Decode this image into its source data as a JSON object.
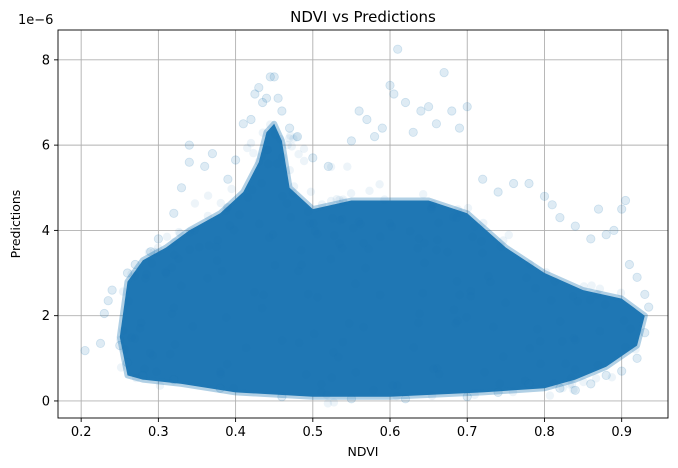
{
  "chart_data": {
    "type": "scatter",
    "title": "NDVI vs Predictions",
    "xlabel": "NDVI",
    "ylabel": "Predictions",
    "y_offset_label": "1e−6",
    "xlim": [
      0.17,
      0.96
    ],
    "ylim": [
      -0.4,
      8.7
    ],
    "x_ticks": [
      0.2,
      0.3,
      0.4,
      0.5,
      0.6,
      0.7,
      0.8,
      0.9
    ],
    "x_tick_labels": [
      "0.2",
      "0.3",
      "0.4",
      "0.5",
      "0.6",
      "0.7",
      "0.8",
      "0.9"
    ],
    "y_ticks": [
      0,
      2,
      4,
      6,
      8
    ],
    "y_tick_labels": [
      "0",
      "2",
      "4",
      "6",
      "8"
    ],
    "grid": true,
    "marker_color": "#1f77b4",
    "marker_alpha": 0.12,
    "series": [
      {
        "name": "",
        "density_outline": [
          [
            0.26,
            0.6
          ],
          [
            0.25,
            1.5
          ],
          [
            0.26,
            2.8
          ],
          [
            0.28,
            3.3
          ],
          [
            0.31,
            3.6
          ],
          [
            0.34,
            4.0
          ],
          [
            0.38,
            4.4
          ],
          [
            0.41,
            4.9
          ],
          [
            0.43,
            5.6
          ],
          [
            0.44,
            6.3
          ],
          [
            0.45,
            6.5
          ],
          [
            0.46,
            6.1
          ],
          [
            0.47,
            5.0
          ],
          [
            0.5,
            4.5
          ],
          [
            0.55,
            4.7
          ],
          [
            0.6,
            4.7
          ],
          [
            0.65,
            4.7
          ],
          [
            0.7,
            4.4
          ],
          [
            0.75,
            3.6
          ],
          [
            0.8,
            3.0
          ],
          [
            0.85,
            2.6
          ],
          [
            0.9,
            2.4
          ],
          [
            0.93,
            2.0
          ],
          [
            0.92,
            1.3
          ],
          [
            0.88,
            0.8
          ],
          [
            0.84,
            0.5
          ],
          [
            0.8,
            0.3
          ],
          [
            0.72,
            0.2
          ],
          [
            0.6,
            0.1
          ],
          [
            0.5,
            0.1
          ],
          [
            0.4,
            0.2
          ],
          [
            0.33,
            0.4
          ],
          [
            0.28,
            0.5
          ]
        ],
        "points": [
          [
            0.205,
            1.18
          ],
          [
            0.225,
            1.35
          ],
          [
            0.23,
            2.05
          ],
          [
            0.235,
            2.35
          ],
          [
            0.24,
            2.6
          ],
          [
            0.26,
            3.0
          ],
          [
            0.27,
            3.2
          ],
          [
            0.29,
            3.5
          ],
          [
            0.3,
            3.8
          ],
          [
            0.32,
            4.4
          ],
          [
            0.33,
            5.0
          ],
          [
            0.34,
            5.6
          ],
          [
            0.34,
            6.0
          ],
          [
            0.36,
            5.5
          ],
          [
            0.37,
            5.8
          ],
          [
            0.39,
            5.2
          ],
          [
            0.4,
            5.65
          ],
          [
            0.41,
            6.5
          ],
          [
            0.42,
            6.6
          ],
          [
            0.425,
            7.2
          ],
          [
            0.43,
            7.35
          ],
          [
            0.435,
            7.0
          ],
          [
            0.44,
            7.1
          ],
          [
            0.445,
            7.6
          ],
          [
            0.45,
            7.6
          ],
          [
            0.455,
            7.1
          ],
          [
            0.46,
            6.8
          ],
          [
            0.47,
            6.4
          ],
          [
            0.48,
            6.2
          ],
          [
            0.5,
            5.7
          ],
          [
            0.52,
            5.5
          ],
          [
            0.55,
            6.1
          ],
          [
            0.56,
            6.8
          ],
          [
            0.57,
            6.6
          ],
          [
            0.58,
            6.2
          ],
          [
            0.59,
            6.4
          ],
          [
            0.6,
            7.4
          ],
          [
            0.605,
            7.2
          ],
          [
            0.61,
            8.25
          ],
          [
            0.62,
            7.0
          ],
          [
            0.63,
            6.3
          ],
          [
            0.64,
            6.8
          ],
          [
            0.65,
            6.9
          ],
          [
            0.66,
            6.5
          ],
          [
            0.67,
            7.7
          ],
          [
            0.68,
            6.8
          ],
          [
            0.69,
            6.4
          ],
          [
            0.7,
            6.9
          ],
          [
            0.72,
            5.2
          ],
          [
            0.74,
            4.9
          ],
          [
            0.76,
            5.1
          ],
          [
            0.78,
            5.1
          ],
          [
            0.8,
            4.8
          ],
          [
            0.81,
            4.6
          ],
          [
            0.82,
            4.3
          ],
          [
            0.84,
            4.1
          ],
          [
            0.86,
            3.8
          ],
          [
            0.87,
            4.5
          ],
          [
            0.88,
            3.9
          ],
          [
            0.89,
            4.0
          ],
          [
            0.9,
            4.5
          ],
          [
            0.905,
            4.7
          ],
          [
            0.91,
            3.2
          ],
          [
            0.92,
            2.9
          ],
          [
            0.93,
            2.5
          ],
          [
            0.935,
            2.2
          ],
          [
            0.93,
            1.6
          ],
          [
            0.92,
            1.0
          ],
          [
            0.9,
            0.7
          ],
          [
            0.88,
            0.6
          ],
          [
            0.86,
            0.4
          ],
          [
            0.84,
            0.25
          ],
          [
            0.82,
            0.3
          ],
          [
            0.78,
            0.4
          ],
          [
            0.74,
            0.2
          ],
          [
            0.7,
            0.1
          ],
          [
            0.62,
            0.05
          ],
          [
            0.55,
            0.05
          ],
          [
            0.46,
            0.1
          ],
          [
            0.38,
            0.3
          ],
          [
            0.32,
            0.5
          ],
          [
            0.28,
            0.6
          ],
          [
            0.26,
            0.9
          ],
          [
            0.25,
            1.3
          ]
        ]
      }
    ]
  }
}
